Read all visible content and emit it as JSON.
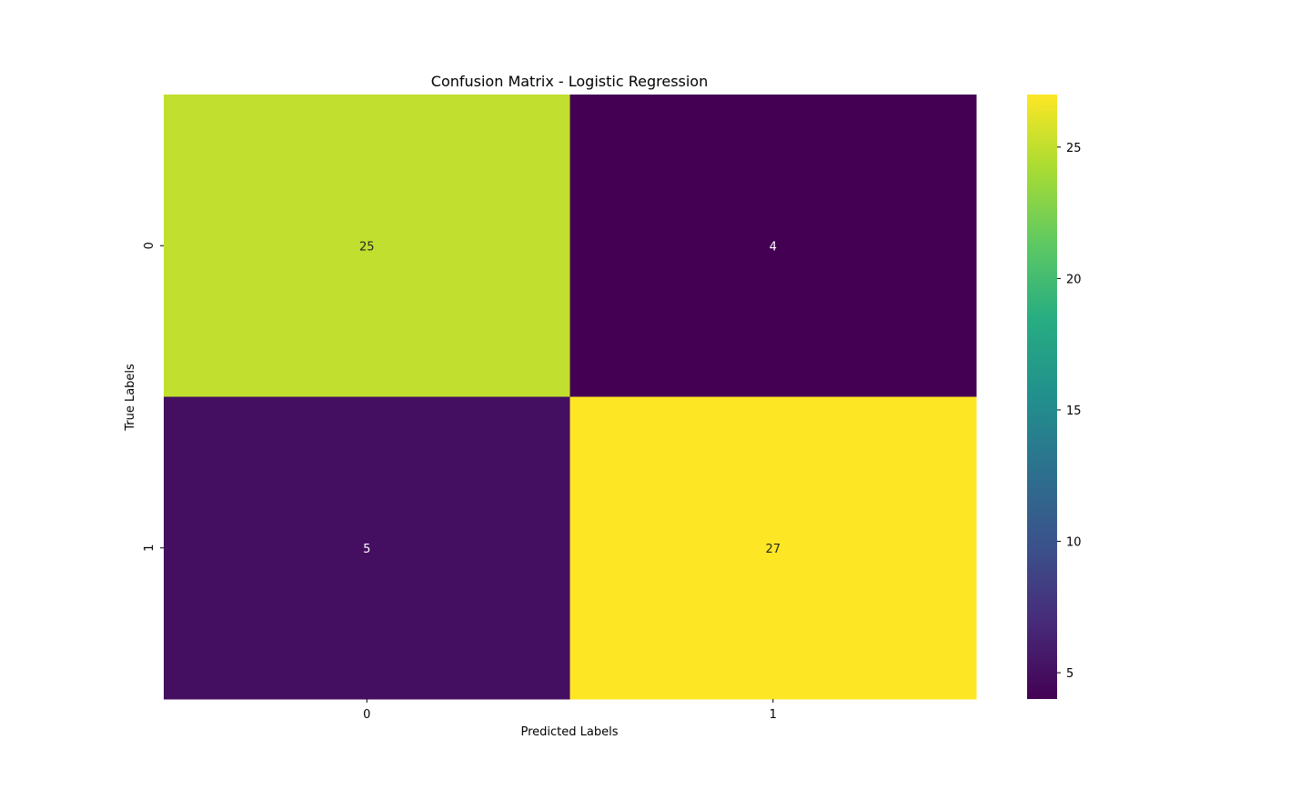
{
  "chart_data": {
    "type": "heatmap",
    "title": "Confusion Matrix - Logistic Regression",
    "xlabel": "Predicted Labels",
    "ylabel": "True Labels",
    "x_categories": [
      "0",
      "1"
    ],
    "y_categories": [
      "0",
      "1"
    ],
    "values": [
      [
        25,
        4
      ],
      [
        5,
        27
      ]
    ],
    "colormap": "viridis",
    "colorbar": {
      "range": [
        4,
        27
      ],
      "ticks": [
        5,
        10,
        15,
        20,
        25
      ]
    },
    "text_colors": {
      "dark": "#262626",
      "light": "#ffffff"
    }
  }
}
